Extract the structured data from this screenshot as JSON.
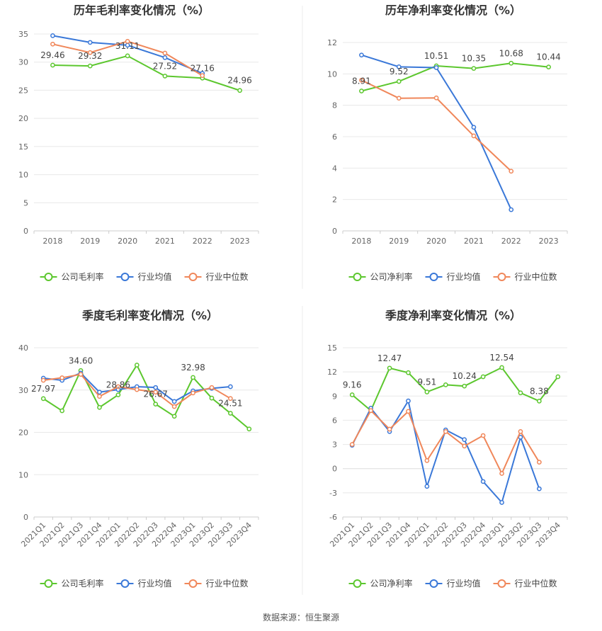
{
  "source_text": "数据来源：恒生聚源",
  "colors": {
    "company": "#5cc72e",
    "industry_avg": "#3a78d8",
    "industry_median": "#f0875a"
  },
  "chart_data": [
    {
      "type": "line",
      "title": "历年毛利率变化情况（%）",
      "categories": [
        "2018",
        "2019",
        "2020",
        "2021",
        "2022",
        "2023"
      ],
      "ylim": [
        0,
        35
      ],
      "yticks": [
        0,
        5,
        10,
        15,
        20,
        25,
        30,
        35
      ],
      "grid": true,
      "legend": "bottom",
      "series": [
        {
          "name": "公司毛利率",
          "key": "company",
          "values": [
            29.46,
            29.32,
            31.11,
            27.52,
            27.16,
            24.96
          ],
          "labels": [
            "29.46",
            "29.32",
            "31.11",
            "27.52",
            "27.16",
            "24.96"
          ]
        },
        {
          "name": "行业均值",
          "key": "industry_avg",
          "values": [
            34.7,
            33.5,
            33.0,
            30.8,
            28.0,
            null
          ]
        },
        {
          "name": "行业中位数",
          "key": "industry_median",
          "values": [
            33.2,
            31.7,
            33.7,
            31.6,
            27.6,
            null
          ]
        }
      ]
    },
    {
      "type": "line",
      "title": "历年净利率变化情况（%）",
      "categories": [
        "2018",
        "2019",
        "2020",
        "2021",
        "2022",
        "2023"
      ],
      "ylim": [
        0,
        12
      ],
      "yticks": [
        0,
        2,
        4,
        6,
        8,
        10,
        12
      ],
      "grid": true,
      "legend": "bottom",
      "series": [
        {
          "name": "公司净利率",
          "key": "company",
          "values": [
            8.91,
            9.52,
            10.51,
            10.35,
            10.68,
            10.44
          ],
          "labels": [
            "8.91",
            "9.52",
            "10.51",
            "10.35",
            "10.68",
            "10.44"
          ]
        },
        {
          "name": "行业均值",
          "key": "industry_avg",
          "values": [
            11.2,
            10.45,
            10.4,
            6.6,
            1.35,
            null
          ]
        },
        {
          "name": "行业中位数",
          "key": "industry_median",
          "values": [
            9.6,
            8.45,
            8.47,
            6.05,
            3.8,
            null
          ]
        }
      ]
    },
    {
      "type": "line",
      "title": "季度毛利率变化情况（%）",
      "categories": [
        "2021Q1",
        "2021Q2",
        "2021Q3",
        "2021Q4",
        "2022Q1",
        "2022Q2",
        "2022Q3",
        "2022Q4",
        "2023Q1",
        "2023Q2",
        "2023Q3",
        "2023Q4"
      ],
      "ylim": [
        0,
        40
      ],
      "yticks": [
        0,
        10,
        20,
        30,
        40
      ],
      "grid": true,
      "legend": "bottom",
      "series": [
        {
          "name": "公司毛利率",
          "key": "company",
          "values": [
            27.97,
            25.1,
            34.6,
            25.9,
            28.86,
            35.9,
            26.67,
            23.8,
            32.98,
            28.1,
            24.51,
            20.8
          ],
          "labels": [
            "27.97",
            null,
            "34.60",
            null,
            "28.86",
            null,
            "26.67",
            null,
            "32.98",
            null,
            "24.51",
            null
          ]
        },
        {
          "name": "行业均值",
          "key": "industry_avg",
          "values": [
            32.8,
            32.3,
            34.0,
            29.5,
            30.1,
            30.8,
            30.6,
            27.3,
            29.8,
            30.4,
            30.8,
            null
          ]
        },
        {
          "name": "行业中位数",
          "key": "industry_median",
          "values": [
            32.3,
            32.9,
            33.7,
            28.5,
            30.8,
            30.1,
            29.5,
            26.1,
            29.3,
            30.6,
            28.0,
            null
          ]
        }
      ]
    },
    {
      "type": "line",
      "title": "季度净利率变化情况（%）",
      "categories": [
        "2021Q1",
        "2021Q2",
        "2021Q3",
        "2021Q4",
        "2022Q1",
        "2022Q2",
        "2022Q3",
        "2022Q4",
        "2023Q1",
        "2023Q2",
        "2023Q3",
        "2023Q4"
      ],
      "ylim": [
        -6,
        15
      ],
      "yticks": [
        -6,
        -3,
        0,
        3,
        6,
        9,
        12,
        15
      ],
      "grid": true,
      "legend": "bottom",
      "series": [
        {
          "name": "公司净利率",
          "key": "company",
          "values": [
            9.16,
            7.2,
            12.47,
            11.9,
            9.51,
            10.4,
            10.24,
            11.4,
            12.54,
            9.4,
            8.38,
            11.4
          ],
          "labels": [
            "9.16",
            null,
            "12.47",
            null,
            "9.51",
            null,
            "10.24",
            null,
            "12.54",
            null,
            "8.38",
            null
          ]
        },
        {
          "name": "行业均值",
          "key": "industry_avg",
          "values": [
            2.9,
            7.5,
            4.6,
            8.4,
            -2.2,
            4.8,
            3.6,
            -1.6,
            -4.2,
            3.9,
            -2.5,
            null
          ]
        },
        {
          "name": "行业中位数",
          "key": "industry_median",
          "values": [
            3.0,
            7.2,
            4.9,
            7.1,
            1.0,
            4.6,
            2.8,
            4.1,
            -0.6,
            4.6,
            0.8,
            null
          ]
        }
      ]
    }
  ]
}
